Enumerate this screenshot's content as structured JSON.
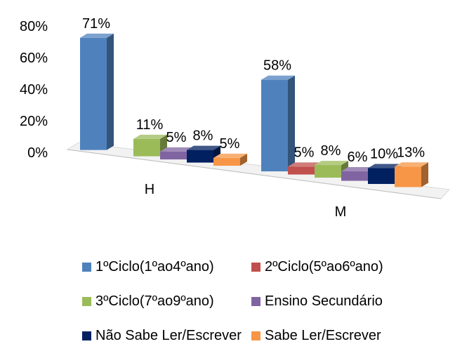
{
  "chart_data": {
    "type": "bar",
    "title": "",
    "categories": [
      "H",
      "M"
    ],
    "yticks": [
      "0%",
      "20%",
      "40%",
      "60%",
      "80%"
    ],
    "ylim": [
      0,
      80
    ],
    "grid": false,
    "legend_position": "bottom",
    "series": [
      {
        "name": "1ºCiclo(1ºao4ºano)",
        "color": "#4F81BD",
        "values": [
          71,
          58
        ],
        "labels": [
          "71%",
          "58%"
        ]
      },
      {
        "name": "2ºCiclo(5ºao6ºano)",
        "color": "#C0504D",
        "values": [
          0,
          5
        ],
        "labels": [
          "",
          "5%"
        ]
      },
      {
        "name": "3ºCiclo(7ºao9ºano)",
        "color": "#9BBB59",
        "values": [
          11,
          8
        ],
        "labels": [
          "11%",
          "8%"
        ]
      },
      {
        "name": "Ensino Secundário",
        "color": "#8064A2",
        "values": [
          5,
          6
        ],
        "labels": [
          "5%",
          "6%"
        ]
      },
      {
        "name": "Não Sabe Ler/Escrever",
        "color": "#002060",
        "values": [
          8,
          10
        ],
        "labels": [
          "8%",
          "10%"
        ]
      },
      {
        "name": "Sabe Ler/Escrever",
        "color": "#F79646",
        "values": [
          5,
          13
        ],
        "labels": [
          "5%",
          "13%"
        ]
      }
    ]
  }
}
